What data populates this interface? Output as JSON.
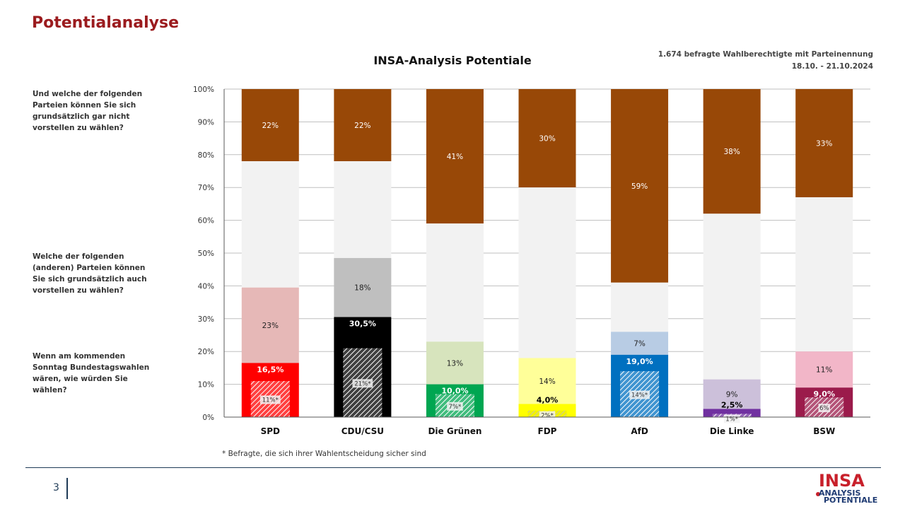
{
  "page_title": "Potentialanalyse",
  "chart_title": "INSA-Analysis Potentiale",
  "survey_info": {
    "line1": "1.674 befragte Wahlberechtigte mit Parteinennung",
    "line2": "18.10. - 21.10.2024"
  },
  "questions": {
    "never": "Und welche der folgenden Parteien können Sie sich grundsätzlich gar nicht vorstellen zu wählen?",
    "could": "Welche der folgenden (anderen) Parteien können Sie sich grundsätzlich auch vorstellen zu wählen?",
    "vote": "Wenn am kommenden Sonntag Bundestagswahlen wären, wie würden Sie wählen?"
  },
  "footnote": "* Befragte, die sich ihrer Wahlentscheidung sicher sind",
  "page_number": "3",
  "logo": {
    "line1": "INSA",
    "line2": "ANALYSIS",
    "line3": "POTENTIALE"
  },
  "colors": {
    "never": "#984807",
    "undecided": "#f2f2f2",
    "grid": "#bfbfbf",
    "axis": "#595959"
  },
  "chart_data": {
    "type": "bar",
    "stacked": true,
    "ylim": [
      0,
      100
    ],
    "y_ticks": [
      "0%",
      "10%",
      "20%",
      "30%",
      "40%",
      "50%",
      "60%",
      "70%",
      "80%",
      "90%",
      "100%"
    ],
    "grid": true,
    "categories": [
      "SPD",
      "CDU/CSU",
      "Die Grünen",
      "FDP",
      "AfD",
      "Die Linke",
      "BSW"
    ],
    "series": [
      {
        "key": "vote",
        "values": [
          16.5,
          30.5,
          10.0,
          4.0,
          19.0,
          2.5,
          9.0
        ],
        "labels": [
          "16,5%",
          "30,5%",
          "10,0%",
          "4,0%",
          "19,0%",
          "2,5%",
          "9,0%"
        ]
      },
      {
        "key": "certain",
        "values": [
          11,
          21,
          7,
          2,
          14,
          1,
          6
        ],
        "labels": [
          "11%*",
          "21%*",
          "7%*",
          "2%*",
          "14%*",
          "1%*",
          "6%"
        ]
      },
      {
        "key": "could",
        "values": [
          23,
          18,
          13,
          14,
          7,
          9,
          11
        ],
        "labels": [
          "23%",
          "18%",
          "13%",
          "14%",
          "7%",
          "9%",
          "11%"
        ]
      },
      {
        "key": "never",
        "values": [
          22,
          22,
          41,
          30,
          59,
          38,
          33
        ],
        "labels": [
          "22%",
          "22%",
          "41%",
          "30%",
          "59%",
          "38%",
          "33%"
        ]
      }
    ],
    "party_colors": {
      "vote": [
        "#ff0000",
        "#000000",
        "#00a651",
        "#ffff00",
        "#0070c0",
        "#7030a0",
        "#9b1b4b"
      ],
      "could": [
        "#e6b8b7",
        "#bfbfbf",
        "#d7e4bd",
        "#ffff99",
        "#b8cce4",
        "#ccc0da",
        "#f2b6c8"
      ],
      "vote_label": [
        "#ffffff",
        "#ffffff",
        "#ffffff",
        "#000000",
        "#ffffff",
        "#ffffff",
        "#ffffff"
      ],
      "could_label": [
        "#222222",
        "#222222",
        "#222222",
        "#222222",
        "#222222",
        "#222222",
        "#222222"
      ]
    }
  }
}
